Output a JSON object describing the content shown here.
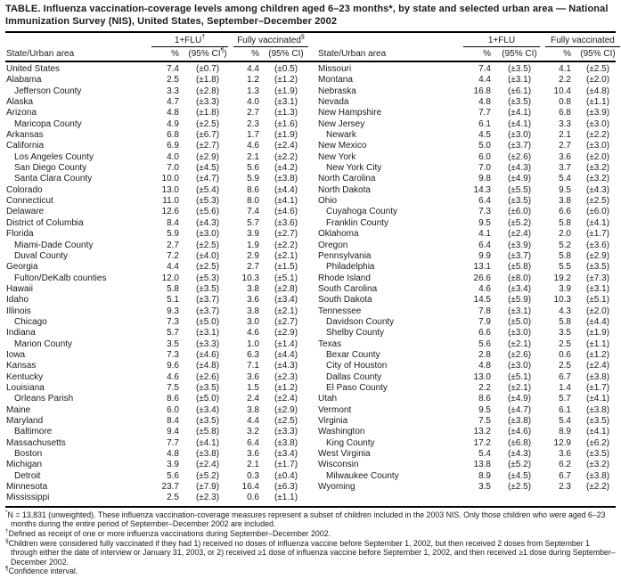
{
  "title": "TABLE. Influenza vaccination-coverage levels among children aged 6–23 months*, by state and selected urban area — National Immunization Survey (NIS), United States, September–December 2002",
  "header": {
    "state_label": "State/Urban area",
    "left_flu_label": "1+FLU",
    "left_flu_marker": "†",
    "left_full_label": "Fully vaccinated",
    "left_full_marker": "§",
    "right_flu_label": "1+FLU",
    "right_flu_marker": "",
    "right_full_label": "Fully vaccinated",
    "right_full_marker": "",
    "pct_label": "%",
    "ci_open": "(95% CI",
    "ci_marker": "¶",
    "ci_close": ")",
    "ci_plain": "(95% CI)"
  },
  "left_rows": [
    {
      "area": "United States",
      "indent": false,
      "flu_pct": "7.4",
      "flu_ci": "(±0.7)",
      "full_pct": "4.4",
      "full_ci": "(±0.5)"
    },
    {
      "area": "Alabama",
      "indent": false,
      "flu_pct": "2.5",
      "flu_ci": "(±1.8)",
      "full_pct": "1.2",
      "full_ci": "(±1.2)"
    },
    {
      "area": "Jefferson County",
      "indent": true,
      "flu_pct": "3.3",
      "flu_ci": "(±2.8)",
      "full_pct": "1.3",
      "full_ci": "(±1.9)"
    },
    {
      "area": "Alaska",
      "indent": false,
      "flu_pct": "4.7",
      "flu_ci": "(±3.3)",
      "full_pct": "4.0",
      "full_ci": "(±3.1)"
    },
    {
      "area": "Arizona",
      "indent": false,
      "flu_pct": "4.8",
      "flu_ci": "(±1.8)",
      "full_pct": "2.7",
      "full_ci": "(±1.3)"
    },
    {
      "area": "Maricopa County",
      "indent": true,
      "flu_pct": "4.9",
      "flu_ci": "(±2.5)",
      "full_pct": "2.3",
      "full_ci": "(±1.6)"
    },
    {
      "area": "Arkansas",
      "indent": false,
      "flu_pct": "6.8",
      "flu_ci": "(±6.7)",
      "full_pct": "1.7",
      "full_ci": "(±1.9)"
    },
    {
      "area": "California",
      "indent": false,
      "flu_pct": "6.9",
      "flu_ci": "(±2.7)",
      "full_pct": "4.6",
      "full_ci": "(±2.4)"
    },
    {
      "area": "Los Angeles County",
      "indent": true,
      "flu_pct": "4.0",
      "flu_ci": "(±2.9)",
      "full_pct": "2.1",
      "full_ci": "(±2.2)"
    },
    {
      "area": "San Diego County",
      "indent": true,
      "flu_pct": "7.0",
      "flu_ci": "(±4.5)",
      "full_pct": "5.6",
      "full_ci": "(±4.2)"
    },
    {
      "area": "Santa Clara County",
      "indent": true,
      "flu_pct": "10.0",
      "flu_ci": "(±4.7)",
      "full_pct": "5.9",
      "full_ci": "(±3.8)"
    },
    {
      "area": "Colorado",
      "indent": false,
      "flu_pct": "13.0",
      "flu_ci": "(±5.4)",
      "full_pct": "8.6",
      "full_ci": "(±4.4)"
    },
    {
      "area": "Connecticut",
      "indent": false,
      "flu_pct": "11.0",
      "flu_ci": "(±5.3)",
      "full_pct": "8.0",
      "full_ci": "(±4.1)"
    },
    {
      "area": "Delaware",
      "indent": false,
      "flu_pct": "12.6",
      "flu_ci": "(±5.6)",
      "full_pct": "7.4",
      "full_ci": "(±4.6)"
    },
    {
      "area": "District of Columbia",
      "indent": false,
      "flu_pct": "8.4",
      "flu_ci": "(±4.3)",
      "full_pct": "5.7",
      "full_ci": "(±3.6)"
    },
    {
      "area": "Florida",
      "indent": false,
      "flu_pct": "5.9",
      "flu_ci": "(±3.0)",
      "full_pct": "3.9",
      "full_ci": "(±2.7)"
    },
    {
      "area": "Miami-Dade County",
      "indent": true,
      "flu_pct": "2.7",
      "flu_ci": "(±2.5)",
      "full_pct": "1.9",
      "full_ci": "(±2.2)"
    },
    {
      "area": "Duval County",
      "indent": true,
      "flu_pct": "7.2",
      "flu_ci": "(±4.0)",
      "full_pct": "2.9",
      "full_ci": "(±2.1)"
    },
    {
      "area": "Georgia",
      "indent": false,
      "flu_pct": "4.4",
      "flu_ci": "(±2.5)",
      "full_pct": "2.7",
      "full_ci": "(±1.5)"
    },
    {
      "area": "Fulton/DeKalb counties",
      "indent": true,
      "flu_pct": "12.0",
      "flu_ci": "(±5.3)",
      "full_pct": "10.3",
      "full_ci": "(±5.1)"
    },
    {
      "area": "Hawaii",
      "indent": false,
      "flu_pct": "5.8",
      "flu_ci": "(±3.5)",
      "full_pct": "3.8",
      "full_ci": "(±2.8)"
    },
    {
      "area": "Idaho",
      "indent": false,
      "flu_pct": "5.1",
      "flu_ci": "(±3.7)",
      "full_pct": "3.6",
      "full_ci": "(±3.4)"
    },
    {
      "area": "Illinois",
      "indent": false,
      "flu_pct": "9.3",
      "flu_ci": "(±3.7)",
      "full_pct": "3.8",
      "full_ci": "(±2.1)"
    },
    {
      "area": "Chicago",
      "indent": true,
      "flu_pct": "7.3",
      "flu_ci": "(±5.0)",
      "full_pct": "3.0",
      "full_ci": "(±2.7)"
    },
    {
      "area": "Indiana",
      "indent": false,
      "flu_pct": "5.7",
      "flu_ci": "(±3.1)",
      "full_pct": "4.6",
      "full_ci": "(±2.9)"
    },
    {
      "area": "Marion County",
      "indent": true,
      "flu_pct": "3.5",
      "flu_ci": "(±3.3)",
      "full_pct": "1.0",
      "full_ci": "(±1.4)"
    },
    {
      "area": "Iowa",
      "indent": false,
      "flu_pct": "7.3",
      "flu_ci": "(±4.6)",
      "full_pct": "6.3",
      "full_ci": "(±4.4)"
    },
    {
      "area": "Kansas",
      "indent": false,
      "flu_pct": "9.6",
      "flu_ci": "(±4.8)",
      "full_pct": "7.1",
      "full_ci": "(±4.3)"
    },
    {
      "area": "Kentucky",
      "indent": false,
      "flu_pct": "4.6",
      "flu_ci": "(±2.6)",
      "full_pct": "3.6",
      "full_ci": "(±2.3)"
    },
    {
      "area": "Louisiana",
      "indent": false,
      "flu_pct": "7.5",
      "flu_ci": "(±3.5)",
      "full_pct": "1.5",
      "full_ci": "(±1.2)"
    },
    {
      "area": "Orleans Parish",
      "indent": true,
      "flu_pct": "8.6",
      "flu_ci": "(±5.0)",
      "full_pct": "2.4",
      "full_ci": "(±2.4)"
    },
    {
      "area": "Maine",
      "indent": false,
      "flu_pct": "6.0",
      "flu_ci": "(±3.4)",
      "full_pct": "3.8",
      "full_ci": "(±2.9)"
    },
    {
      "area": "Maryland",
      "indent": false,
      "flu_pct": "8.4",
      "flu_ci": "(±3.5)",
      "full_pct": "4.4",
      "full_ci": "(±2.5)"
    },
    {
      "area": "Baltimore",
      "indent": true,
      "flu_pct": "9.4",
      "flu_ci": "(±5.8)",
      "full_pct": "3.2",
      "full_ci": "(±3.3)"
    },
    {
      "area": "Massachusetts",
      "indent": false,
      "flu_pct": "7.7",
      "flu_ci": "(±4.1)",
      "full_pct": "6.4",
      "full_ci": "(±3.8)"
    },
    {
      "area": "Boston",
      "indent": true,
      "flu_pct": "4.8",
      "flu_ci": "(±3.8)",
      "full_pct": "3.6",
      "full_ci": "(±3.4)"
    },
    {
      "area": "Michigan",
      "indent": false,
      "flu_pct": "3.9",
      "flu_ci": "(±2.4)",
      "full_pct": "2.1",
      "full_ci": "(±1.7)"
    },
    {
      "area": "Detroit",
      "indent": true,
      "flu_pct": "5.6",
      "flu_ci": "(±5.2)",
      "full_pct": "0.3",
      "full_ci": "(±0.4)"
    },
    {
      "area": "Minnesota",
      "indent": false,
      "flu_pct": "23.7",
      "flu_ci": "(±7.9)",
      "full_pct": "16.4",
      "full_ci": "(±6.3)"
    },
    {
      "area": "Mississippi",
      "indent": false,
      "flu_pct": "2.5",
      "flu_ci": "(±2.3)",
      "full_pct": "0.6",
      "full_ci": "(±1.1)"
    }
  ],
  "right_rows": [
    {
      "area": "Missouri",
      "indent": false,
      "flu_pct": "7.4",
      "flu_ci": "(±3.5)",
      "full_pct": "4.1",
      "full_ci": "(±2.5)"
    },
    {
      "area": "Montana",
      "indent": false,
      "flu_pct": "4.4",
      "flu_ci": "(±3.1)",
      "full_pct": "2.2",
      "full_ci": "(±2.0)"
    },
    {
      "area": "Nebraska",
      "indent": false,
      "flu_pct": "16.8",
      "flu_ci": "(±6.1)",
      "full_pct": "10.4",
      "full_ci": "(±4.8)"
    },
    {
      "area": "Nevada",
      "indent": false,
      "flu_pct": "4.8",
      "flu_ci": "(±3.5)",
      "full_pct": "0.8",
      "full_ci": "(±1.1)"
    },
    {
      "area": "New Hampshire",
      "indent": false,
      "flu_pct": "7.7",
      "flu_ci": "(±4.1)",
      "full_pct": "6.8",
      "full_ci": "(±3.9)"
    },
    {
      "area": "New Jersey",
      "indent": false,
      "flu_pct": "6.1",
      "flu_ci": "(±4.1)",
      "full_pct": "3.3",
      "full_ci": "(±3.0)"
    },
    {
      "area": "Newark",
      "indent": true,
      "flu_pct": "4.5",
      "flu_ci": "(±3.0)",
      "full_pct": "2.1",
      "full_ci": "(±2.2)"
    },
    {
      "area": "New Mexico",
      "indent": false,
      "flu_pct": "5.0",
      "flu_ci": "(±3.7)",
      "full_pct": "2.7",
      "full_ci": "(±3.0)"
    },
    {
      "area": "New York",
      "indent": false,
      "flu_pct": "6.0",
      "flu_ci": "(±2.6)",
      "full_pct": "3.6",
      "full_ci": "(±2.0)"
    },
    {
      "area": "New York City",
      "indent": true,
      "flu_pct": "7.0",
      "flu_ci": "(±4.3)",
      "full_pct": "3.7",
      "full_ci": "(±3.2)"
    },
    {
      "area": "North Carolina",
      "indent": false,
      "flu_pct": "9.8",
      "flu_ci": "(±4.9)",
      "full_pct": "5.4",
      "full_ci": "(±3.2)"
    },
    {
      "area": "North Dakota",
      "indent": false,
      "flu_pct": "14.3",
      "flu_ci": "(±5.5)",
      "full_pct": "9.5",
      "full_ci": "(±4.3)"
    },
    {
      "area": "Ohio",
      "indent": false,
      "flu_pct": "6.4",
      "flu_ci": "(±3.5)",
      "full_pct": "3.8",
      "full_ci": "(±2.5)"
    },
    {
      "area": "Cuyahoga County",
      "indent": true,
      "flu_pct": "7.3",
      "flu_ci": "(±6.0)",
      "full_pct": "6.6",
      "full_ci": "(±6.0)"
    },
    {
      "area": "Franklin County",
      "indent": true,
      "flu_pct": "9.5",
      "flu_ci": "(±5.2)",
      "full_pct": "5.8",
      "full_ci": "(±4.1)"
    },
    {
      "area": "Oklahoma",
      "indent": false,
      "flu_pct": "4.1",
      "flu_ci": "(±2.4)",
      "full_pct": "2.0",
      "full_ci": "(±1.7)"
    },
    {
      "area": "Oregon",
      "indent": false,
      "flu_pct": "6.4",
      "flu_ci": "(±3.9)",
      "full_pct": "5.2",
      "full_ci": "(±3.6)"
    },
    {
      "area": "Pennsylvania",
      "indent": false,
      "flu_pct": "9.9",
      "flu_ci": "(±3.7)",
      "full_pct": "5.8",
      "full_ci": "(±2.9)"
    },
    {
      "area": "Philadelphia",
      "indent": true,
      "flu_pct": "13.1",
      "flu_ci": "(±5.8)",
      "full_pct": "5.5",
      "full_ci": "(±3.5)"
    },
    {
      "area": "Rhode Island",
      "indent": false,
      "flu_pct": "26.6",
      "flu_ci": "(±8.0)",
      "full_pct": "19.2",
      "full_ci": "(±7.3)"
    },
    {
      "area": "South Carolina",
      "indent": false,
      "flu_pct": "4.6",
      "flu_ci": "(±3.4)",
      "full_pct": "3.9",
      "full_ci": "(±3.1)"
    },
    {
      "area": "South Dakota",
      "indent": false,
      "flu_pct": "14.5",
      "flu_ci": "(±5.9)",
      "full_pct": "10.3",
      "full_ci": "(±5.1)"
    },
    {
      "area": "Tennessee",
      "indent": false,
      "flu_pct": "7.8",
      "flu_ci": "(±3.1)",
      "full_pct": "4.3",
      "full_ci": "(±2.0)"
    },
    {
      "area": "Davidson County",
      "indent": true,
      "flu_pct": "7.9",
      "flu_ci": "(±5.0)",
      "full_pct": "5.8",
      "full_ci": "(±4.4)"
    },
    {
      "area": "Shelby County",
      "indent": true,
      "flu_pct": "6.6",
      "flu_ci": "(±3.0)",
      "full_pct": "3.5",
      "full_ci": "(±1.9)"
    },
    {
      "area": "Texas",
      "indent": false,
      "flu_pct": "5.6",
      "flu_ci": "(±2.1)",
      "full_pct": "2.5",
      "full_ci": "(±1.1)"
    },
    {
      "area": "Bexar County",
      "indent": true,
      "flu_pct": "2.8",
      "flu_ci": "(±2.6)",
      "full_pct": "0.6",
      "full_ci": "(±1.2)"
    },
    {
      "area": "City of Houston",
      "indent": true,
      "flu_pct": "4.8",
      "flu_ci": "(±3.0)",
      "full_pct": "2.5",
      "full_ci": "(±2.4)"
    },
    {
      "area": "Dallas County",
      "indent": true,
      "flu_pct": "13.0",
      "flu_ci": "(±5.1)",
      "full_pct": "6.7",
      "full_ci": "(±3.8)"
    },
    {
      "area": "El Paso County",
      "indent": true,
      "flu_pct": "2.2",
      "flu_ci": "(±2.1)",
      "full_pct": "1.4",
      "full_ci": "(±1.7)"
    },
    {
      "area": "Utah",
      "indent": false,
      "flu_pct": "8.6",
      "flu_ci": "(±4.9)",
      "full_pct": "5.7",
      "full_ci": "(±4.1)"
    },
    {
      "area": "Vermont",
      "indent": false,
      "flu_pct": "9.5",
      "flu_ci": "(±4.7)",
      "full_pct": "6.1",
      "full_ci": "(±3.8)"
    },
    {
      "area": "Virginia",
      "indent": false,
      "flu_pct": "7.5",
      "flu_ci": "(±3.8)",
      "full_pct": "5.4",
      "full_ci": "(±3.5)"
    },
    {
      "area": "Washington",
      "indent": false,
      "flu_pct": "13.2",
      "flu_ci": "(±4.6)",
      "full_pct": "8.9",
      "full_ci": "(±4.1)"
    },
    {
      "area": "King County",
      "indent": true,
      "flu_pct": "17.2",
      "flu_ci": "(±6.8)",
      "full_pct": "12.9",
      "full_ci": "(±6.2)"
    },
    {
      "area": "West Virginia",
      "indent": false,
      "flu_pct": "5.4",
      "flu_ci": "(±4.3)",
      "full_pct": "3.6",
      "full_ci": "(±3.5)"
    },
    {
      "area": "Wisconsin",
      "indent": false,
      "flu_pct": "13.8",
      "flu_ci": "(±5.2)",
      "full_pct": "6.2",
      "full_ci": "(±3.2)"
    },
    {
      "area": "Milwaukee County",
      "indent": true,
      "flu_pct": "8.9",
      "flu_ci": "(±4.5)",
      "full_pct": "6.7",
      "full_ci": "(±3.8)"
    },
    {
      "area": "Wyoming",
      "indent": false,
      "flu_pct": "3.5",
      "flu_ci": "(±2.5)",
      "full_pct": "2.3",
      "full_ci": "(±2.2)"
    }
  ],
  "footnotes": [
    {
      "marker": "*",
      "text": "N = 13,831 (unweighted). These influenza vaccination-coverage measures represent a subset of children included in the 2003 NIS. Only those children who were aged 6–23 months during the entire period of September–December 2002 are included."
    },
    {
      "marker": "†",
      "text": "Defined as receipt of one or more influenza vaccinations during September–December 2002."
    },
    {
      "marker": "§",
      "text": "Children were considered fully vaccinated if they had 1) received no doses of influenza vaccine before September 1, 2002, but then received 2 doses from September 1 through either the date of interview or January 31, 2003, or 2) received ≥1 dose of influenza vaccine before September 1, 2002, and then received ≥1 dose during September–December 2002."
    },
    {
      "marker": "¶",
      "text": "Confidence interval."
    }
  ]
}
